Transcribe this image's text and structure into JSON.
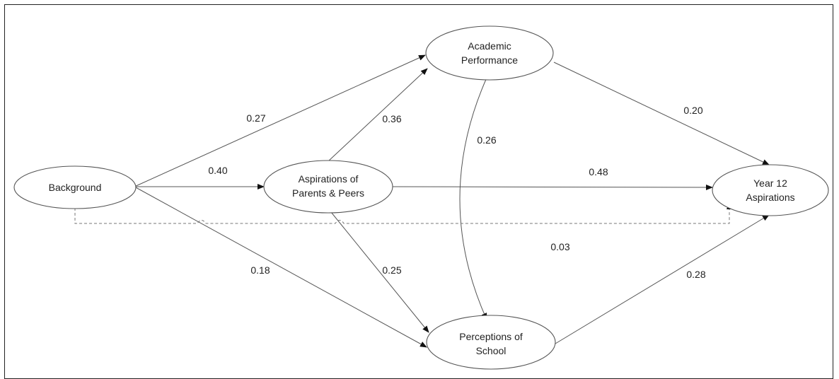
{
  "nodes": {
    "background": {
      "lines": [
        "Background"
      ]
    },
    "aspirations_parents_peers": {
      "lines": [
        "Aspirations of",
        "Parents & Peers"
      ]
    },
    "academic_performance": {
      "lines": [
        "Academic",
        "Performance"
      ]
    },
    "perceptions_school": {
      "lines": [
        "Perceptions of",
        "School"
      ]
    },
    "year12_aspirations": {
      "lines": [
        "Year 12",
        "Aspirations"
      ]
    }
  },
  "paths": {
    "background_to_academic": "0.27",
    "background_to_aspirations": "0.40",
    "background_to_perceptions": "0.18",
    "background_to_year12": "0.03",
    "aspirations_to_academic": "0.36",
    "aspirations_to_perceptions": "0.25",
    "aspirations_to_year12": "0.48",
    "academic_perceptions_correlation": "0.26",
    "academic_to_year12": "0.20",
    "perceptions_to_year12": "0.28"
  }
}
